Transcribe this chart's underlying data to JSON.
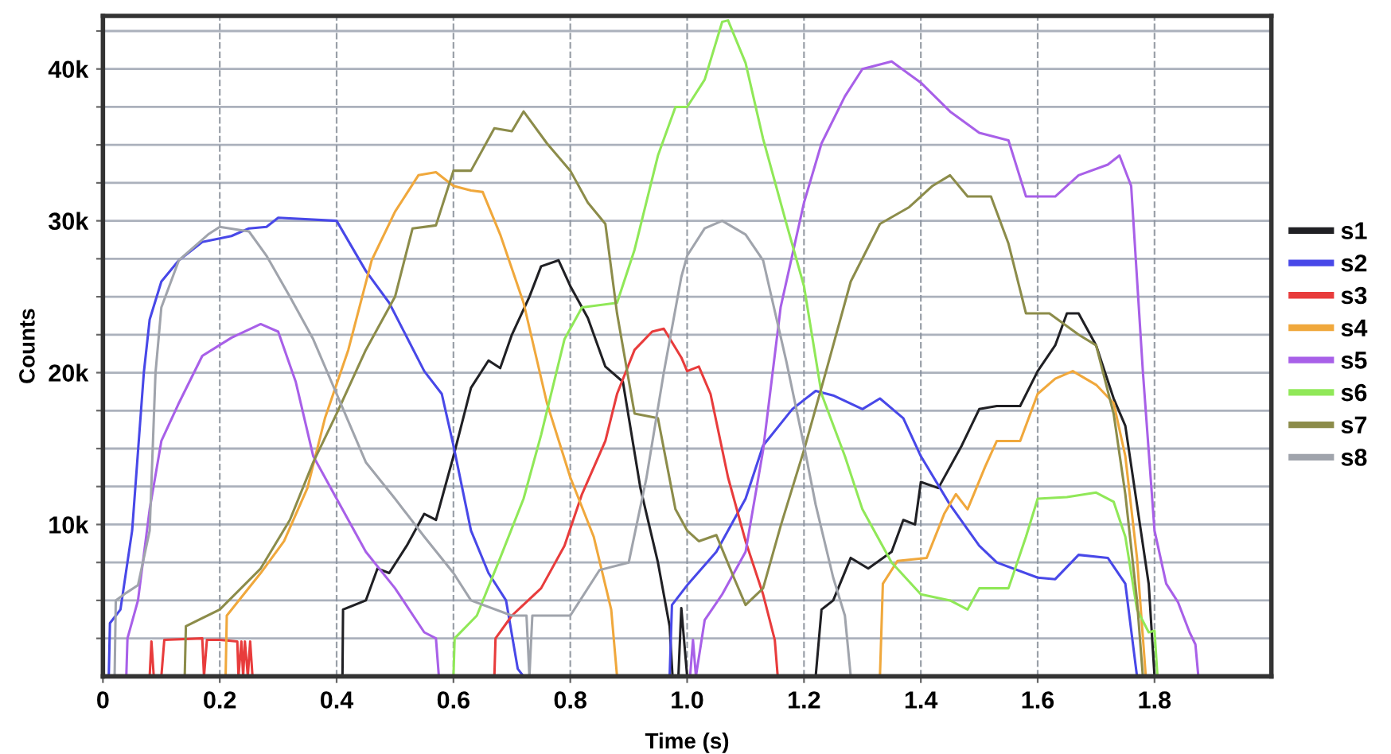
{
  "chart_data": {
    "type": "line",
    "xlabel": "Time (s)",
    "ylabel": "Counts",
    "xlim": [
      0,
      2.0
    ],
    "ylim": [
      0,
      43500
    ],
    "xticks": [
      0,
      0.2,
      0.4,
      0.6,
      0.8,
      {
        "value": 1.0,
        "label": "1.0"
      },
      1.2,
      1.4,
      1.6,
      1.8
    ],
    "yticks": [
      {
        "value": 2500,
        "label": null
      },
      {
        "value": 5000,
        "label": null
      },
      {
        "value": 7500,
        "label": null
      },
      {
        "value": 10000,
        "label": "10k"
      },
      {
        "value": 12500,
        "label": null
      },
      {
        "value": 15000,
        "label": null
      },
      {
        "value": 17500,
        "label": null
      },
      {
        "value": 20000,
        "label": "20k"
      },
      {
        "value": 22500,
        "label": null
      },
      {
        "value": 25000,
        "label": null
      },
      {
        "value": 27500,
        "label": null
      },
      {
        "value": 30000,
        "label": "30k"
      },
      {
        "value": 32500,
        "label": null
      },
      {
        "value": 35000,
        "label": null
      },
      {
        "value": 37500,
        "label": null
      },
      {
        "value": 40000,
        "label": "40k"
      },
      {
        "value": 42500,
        "label": null
      }
    ],
    "grid": true,
    "legend": "right",
    "marker": "none",
    "line_style": "solid",
    "series": [
      {
        "name": "s1",
        "color": "#202024",
        "x": [
          0,
          0.41,
          0.411,
          0.45,
          0.47,
          0.49,
          0.52,
          0.55,
          0.57,
          0.6,
          0.63,
          0.66,
          0.68,
          0.7,
          0.73,
          0.75,
          0.78,
          0.8,
          0.83,
          0.86,
          0.89,
          0.92,
          0.95,
          0.97,
          0.975,
          0.985,
          0.99,
          1.0,
          1.22,
          1.23,
          1.25,
          1.28,
          1.31,
          1.35,
          1.37,
          1.39,
          1.4,
          1.43,
          1.47,
          1.5,
          1.53,
          1.57,
          1.6,
          1.63,
          1.65,
          1.67,
          1.7,
          1.73,
          1.75,
          1.77,
          1.79,
          1.8
        ],
        "values": [
          0,
          0,
          4400,
          5000,
          7100,
          6800,
          8600,
          10700,
          10300,
          14500,
          19000,
          20800,
          20300,
          22500,
          25000,
          27000,
          27400,
          25700,
          23600,
          20400,
          19400,
          12400,
          7500,
          3300,
          0,
          0,
          4500,
          0,
          0,
          4400,
          5000,
          7800,
          7100,
          8200,
          10300,
          10000,
          12800,
          12400,
          15200,
          17600,
          17800,
          17800,
          20100,
          21800,
          23900,
          23900,
          21800,
          18300,
          16500,
          11300,
          6100,
          0
        ]
      },
      {
        "name": "s2",
        "color": "#4848e8",
        "x": [
          0,
          0.01,
          0.012,
          0.03,
          0.05,
          0.07,
          0.08,
          0.1,
          0.13,
          0.17,
          0.22,
          0.25,
          0.28,
          0.3,
          0.4,
          0.45,
          0.49,
          0.55,
          0.58,
          0.6,
          0.63,
          0.66,
          0.69,
          0.71,
          0.72,
          0.97,
          0.974,
          1.0,
          1.05,
          1.1,
          1.13,
          1.18,
          1.22,
          1.25,
          1.3,
          1.33,
          1.37,
          1.4,
          1.45,
          1.5,
          1.53,
          1.6,
          1.63,
          1.67,
          1.72,
          1.75,
          1.77
        ],
        "values": [
          0,
          0,
          3500,
          4400,
          9600,
          20000,
          23500,
          26000,
          27400,
          28600,
          29000,
          29500,
          29600,
          30200,
          30000,
          26700,
          24600,
          20100,
          18600,
          15200,
          9600,
          6800,
          5000,
          500,
          0,
          0,
          4700,
          6000,
          8200,
          11700,
          15200,
          17600,
          18800,
          18500,
          17600,
          18300,
          17000,
          14500,
          11300,
          8600,
          7500,
          6500,
          6400,
          8000,
          7800,
          6100,
          0
        ]
      },
      {
        "name": "s3",
        "color": "#e83c3c",
        "x": [
          0,
          0.08,
          0.083,
          0.087,
          0.1,
          0.105,
          0.17,
          0.173,
          0.178,
          0.2,
          0.23,
          0.232,
          0.237,
          0.24,
          0.243,
          0.248,
          0.252,
          0.256,
          0.67,
          0.672,
          0.7,
          0.75,
          0.79,
          0.82,
          0.86,
          0.88,
          0.91,
          0.94,
          0.96,
          0.99,
          1.0,
          1.02,
          1.04,
          1.07,
          1.1,
          1.13,
          1.15,
          1.155
        ],
        "values": [
          0,
          0,
          2300,
          0,
          0,
          2400,
          2500,
          0,
          2400,
          2400,
          2300,
          0,
          2300,
          0,
          2300,
          0,
          2300,
          0,
          0,
          2500,
          4000,
          5800,
          8600,
          12000,
          15500,
          18600,
          21500,
          22700,
          22900,
          21000,
          20100,
          20400,
          18600,
          13100,
          8900,
          5400,
          2400,
          0
        ]
      },
      {
        "name": "s4",
        "color": "#f0a83c",
        "x": [
          0,
          0.21,
          0.212,
          0.27,
          0.31,
          0.35,
          0.38,
          0.42,
          0.46,
          0.5,
          0.54,
          0.57,
          0.6,
          0.63,
          0.65,
          0.68,
          0.72,
          0.76,
          0.8,
          0.84,
          0.87,
          0.88,
          1.33,
          1.335,
          1.36,
          1.41,
          1.44,
          1.46,
          1.48,
          1.51,
          1.53,
          1.57,
          1.6,
          1.63,
          1.66,
          1.7,
          1.73,
          1.75,
          1.77,
          1.785
        ],
        "values": [
          0,
          0,
          4000,
          6800,
          8900,
          12400,
          17000,
          21500,
          27400,
          30600,
          33000,
          33200,
          32300,
          32000,
          31900,
          29100,
          24600,
          18000,
          13100,
          9200,
          4400,
          0,
          0,
          6100,
          7600,
          7800,
          10700,
          12000,
          11000,
          13800,
          15500,
          15500,
          18600,
          19600,
          20100,
          19200,
          18000,
          14500,
          7800,
          0
        ]
      },
      {
        "name": "s5",
        "color": "#a860e8",
        "x": [
          0,
          0.04,
          0.042,
          0.06,
          0.08,
          0.1,
          0.13,
          0.17,
          0.22,
          0.27,
          0.3,
          0.33,
          0.36,
          0.4,
          0.45,
          0.5,
          0.55,
          0.57,
          0.575,
          1.005,
          1.01,
          1.015,
          1.03,
          1.06,
          1.1,
          1.13,
          1.16,
          1.2,
          1.23,
          1.27,
          1.3,
          1.35,
          1.4,
          1.45,
          1.5,
          1.55,
          1.58,
          1.63,
          1.67,
          1.72,
          1.74,
          1.76,
          1.78,
          1.8,
          1.82,
          1.84,
          1.86,
          1.87,
          1.875
        ],
        "values": [
          0,
          0,
          2500,
          5000,
          11000,
          15500,
          18000,
          21100,
          22300,
          23200,
          22700,
          19400,
          14500,
          11700,
          8200,
          5800,
          2900,
          2500,
          0,
          0,
          2400,
          0,
          3700,
          5400,
          8200,
          14900,
          24300,
          31200,
          35100,
          38200,
          40000,
          40500,
          39100,
          37200,
          35800,
          35300,
          31600,
          31600,
          33000,
          33700,
          34300,
          32300,
          20100,
          9600,
          6100,
          4900,
          2900,
          2100,
          0
        ]
      },
      {
        "name": "s6",
        "color": "#90e858",
        "x": [
          0,
          0.6,
          0.602,
          0.64,
          0.68,
          0.72,
          0.75,
          0.79,
          0.82,
          0.88,
          0.91,
          0.95,
          0.98,
          1.0,
          1.03,
          1.06,
          1.07,
          1.1,
          1.13,
          1.17,
          1.2,
          1.23,
          1.27,
          1.3,
          1.35,
          1.4,
          1.45,
          1.48,
          1.5,
          1.55,
          1.58,
          1.6,
          1.65,
          1.7,
          1.73,
          1.75,
          1.77,
          1.79,
          1.8,
          1.805
        ],
        "values": [
          0,
          0,
          2500,
          4000,
          7800,
          11700,
          15900,
          22200,
          24300,
          24600,
          28100,
          34300,
          37500,
          37500,
          39300,
          43100,
          43200,
          40400,
          35400,
          29800,
          25700,
          18600,
          14500,
          11000,
          7500,
          5400,
          5000,
          4400,
          5800,
          5800,
          9200,
          11700,
          11800,
          12100,
          11500,
          9200,
          4400,
          2900,
          3000,
          0
        ]
      },
      {
        "name": "s7",
        "color": "#8c8c4a",
        "x": [
          0,
          0.14,
          0.142,
          0.2,
          0.27,
          0.32,
          0.36,
          0.4,
          0.45,
          0.5,
          0.53,
          0.57,
          0.6,
          0.63,
          0.67,
          0.7,
          0.72,
          0.76,
          0.8,
          0.83,
          0.86,
          0.88,
          0.91,
          0.95,
          0.98,
          1.0,
          1.02,
          1.05,
          1.08,
          1.1,
          1.13,
          1.16,
          1.2,
          1.24,
          1.28,
          1.33,
          1.38,
          1.42,
          1.45,
          1.48,
          1.52,
          1.55,
          1.58,
          1.62,
          1.67,
          1.7,
          1.73,
          1.75,
          1.77,
          1.78
        ],
        "values": [
          0,
          0,
          3300,
          4400,
          7100,
          10300,
          14100,
          17300,
          21500,
          25000,
          29500,
          29700,
          33300,
          33300,
          36100,
          35900,
          37200,
          35100,
          33300,
          31200,
          29800,
          23900,
          17300,
          17000,
          11000,
          9600,
          8900,
          9300,
          6500,
          4700,
          5800,
          9900,
          14900,
          20400,
          26000,
          29800,
          30900,
          32300,
          33000,
          31600,
          31600,
          28500,
          23900,
          23900,
          22500,
          21800,
          17300,
          12000,
          5000,
          0
        ]
      },
      {
        "name": "s8",
        "color": "#a0a4ac",
        "x": [
          0,
          0.02,
          0.022,
          0.04,
          0.06,
          0.08,
          0.09,
          0.1,
          0.13,
          0.18,
          0.2,
          0.25,
          0.28,
          0.32,
          0.36,
          0.4,
          0.45,
          0.5,
          0.55,
          0.6,
          0.63,
          0.7,
          0.725,
          0.73,
          0.735,
          0.8,
          0.85,
          0.9,
          0.93,
          0.96,
          0.99,
          1.0,
          1.03,
          1.06,
          1.1,
          1.13,
          1.17,
          1.2,
          1.22,
          1.25,
          1.27,
          1.28
        ],
        "values": [
          0,
          0,
          5000,
          5500,
          6000,
          9600,
          20000,
          24300,
          27400,
          29100,
          29600,
          29300,
          27700,
          25000,
          22200,
          18600,
          14100,
          11700,
          9200,
          6800,
          5000,
          4000,
          4000,
          0,
          4000,
          4000,
          7000,
          7500,
          13000,
          20000,
          26300,
          27700,
          29500,
          30000,
          29100,
          27400,
          20700,
          15200,
          11300,
          6500,
          4000,
          0
        ]
      }
    ]
  }
}
